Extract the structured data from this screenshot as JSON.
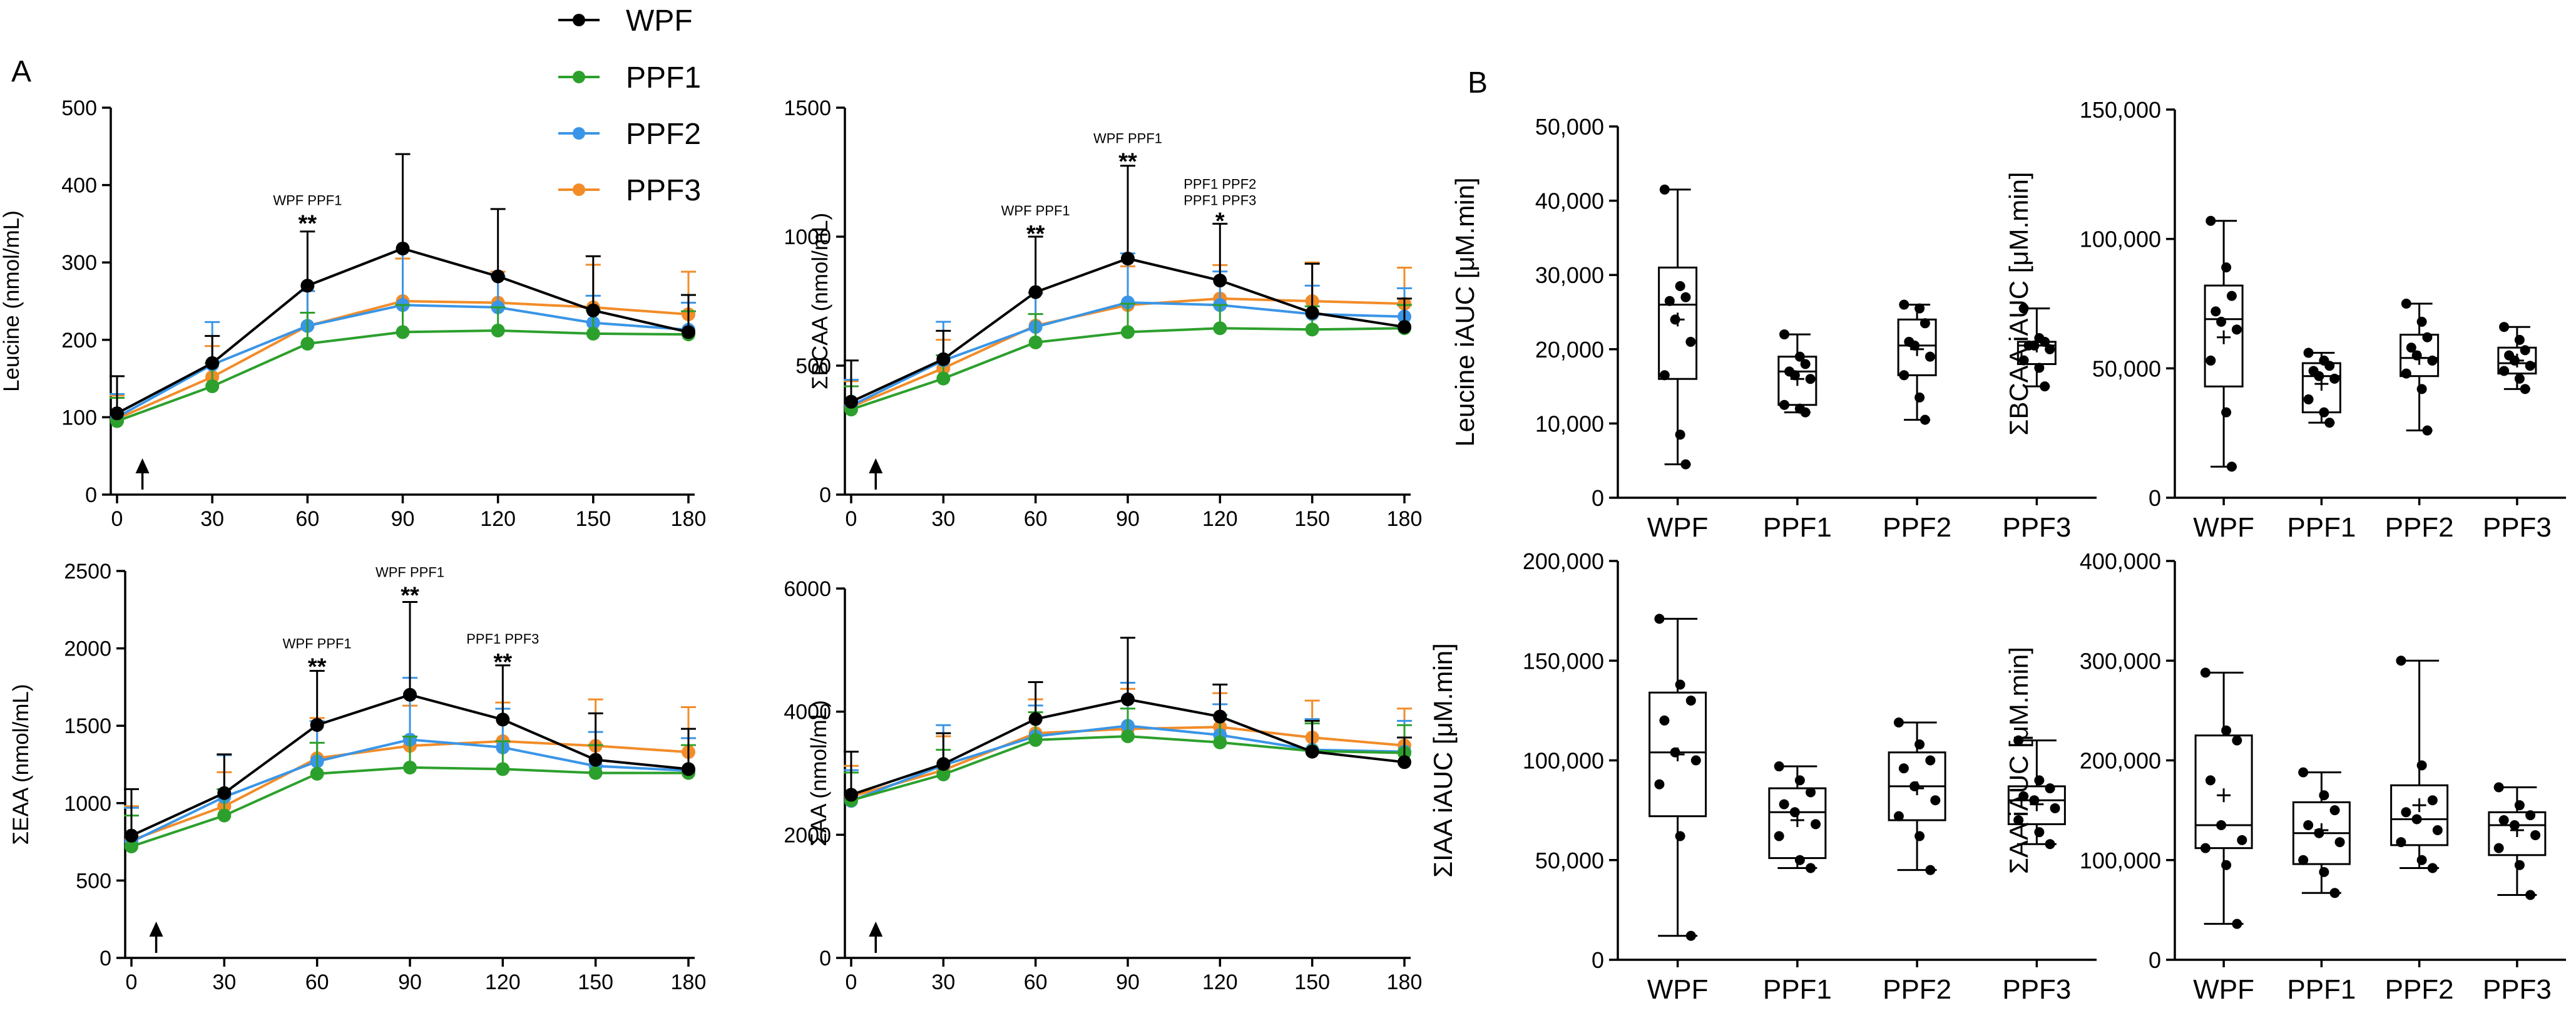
{
  "panel_labels": {
    "a": "A",
    "b": "B"
  },
  "legend": [
    {
      "name": "WPF",
      "color": "#000000"
    },
    {
      "name": "PPF1",
      "color": "#2ca02c"
    },
    {
      "name": "PPF2",
      "color": "#3a95e6"
    },
    {
      "name": "PPF3",
      "color": "#f28c28"
    }
  ],
  "chart_data": [
    {
      "type": "line",
      "id": "leucine",
      "ylabel": "Leucine (nmol/mL)",
      "x": [
        0,
        30,
        60,
        90,
        120,
        150,
        180
      ],
      "xticks": [
        "0",
        "30",
        "60",
        "90",
        "120",
        "150",
        "180"
      ],
      "ylim": [
        0,
        500
      ],
      "yticks": [
        "0",
        "100",
        "200",
        "300",
        "400",
        "500"
      ],
      "yticks_values": [
        0,
        100,
        200,
        300,
        400,
        500
      ],
      "arrow_x": 8,
      "series": [
        {
          "name": "WPF",
          "values": [
            105,
            170,
            270,
            318,
            282,
            238,
            210
          ],
          "err": [
            48,
            35,
            70,
            122,
            87,
            70,
            48
          ]
        },
        {
          "name": "PPF1",
          "values": [
            95,
            140,
            195,
            210,
            212,
            208,
            207
          ],
          "err": [
            30,
            30,
            40,
            35,
            30,
            30,
            30
          ]
        },
        {
          "name": "PPF2",
          "values": [
            100,
            168,
            218,
            245,
            242,
            222,
            213
          ],
          "err": [
            30,
            55,
            45,
            70,
            40,
            35,
            35
          ]
        },
        {
          "name": "PPF3",
          "values": [
            98,
            152,
            218,
            250,
            248,
            242,
            233
          ],
          "err": [
            30,
            40,
            45,
            55,
            40,
            55,
            55
          ]
        }
      ],
      "annotations": [
        {
          "x": 60,
          "level": 350,
          "text": "WPF PPF1",
          "stars": "**"
        }
      ]
    },
    {
      "type": "line",
      "id": "bcaa",
      "ylabel": "ΣBCAA (nmol/mL)",
      "x": [
        0,
        30,
        60,
        90,
        120,
        150,
        180
      ],
      "xticks": [
        "0",
        "30",
        "60",
        "90",
        "120",
        "150",
        "180"
      ],
      "ylim": [
        0,
        1500
      ],
      "yticks": [
        "0",
        "500",
        "1000",
        "1500"
      ],
      "yticks_values": [
        0,
        500,
        1000,
        1500
      ],
      "arrow_x": 8,
      "series": [
        {
          "name": "WPF",
          "values": [
            360,
            525,
            785,
            915,
            830,
            705,
            650
          ],
          "err": [
            160,
            110,
            215,
            360,
            220,
            190,
            110
          ]
        },
        {
          "name": "PPF1",
          "values": [
            330,
            450,
            590,
            630,
            645,
            640,
            645
          ],
          "err": [
            90,
            90,
            110,
            110,
            90,
            90,
            90
          ]
        },
        {
          "name": "PPF2",
          "values": [
            345,
            520,
            650,
            745,
            735,
            700,
            690
          ],
          "err": [
            100,
            150,
            130,
            190,
            130,
            110,
            110
          ]
        },
        {
          "name": "PPF3",
          "values": [
            340,
            490,
            655,
            735,
            760,
            750,
            740
          ],
          "err": [
            100,
            110,
            130,
            150,
            130,
            150,
            140
          ]
        }
      ],
      "annotations": [
        {
          "x": 60,
          "level": 1010,
          "text": "WPF PPF1",
          "stars": "**"
        },
        {
          "x": 90,
          "level": 1290,
          "text": "WPF PPF1",
          "stars": "**"
        },
        {
          "x": 120,
          "level": 1060,
          "text": "PPF1 PPF2",
          "text2": "PPF1 PPF3",
          "stars": "*"
        }
      ]
    },
    {
      "type": "line",
      "id": "eaa",
      "ylabel": "ΣEAA (nmol/mL)",
      "x": [
        0,
        30,
        60,
        90,
        120,
        150,
        180
      ],
      "xticks": [
        "0",
        "30",
        "60",
        "90",
        "120",
        "150",
        "180"
      ],
      "ylim": [
        0,
        2500
      ],
      "yticks": [
        "0",
        "500",
        "1000",
        "1500",
        "2000",
        "2500"
      ],
      "yticks_values": [
        0,
        500,
        1000,
        1500,
        2000,
        2500
      ],
      "arrow_x": 8,
      "series": [
        {
          "name": "WPF",
          "values": [
            790,
            1065,
            1505,
            1700,
            1540,
            1280,
            1220
          ],
          "err": [
            300,
            250,
            350,
            600,
            350,
            300,
            260
          ]
        },
        {
          "name": "PPF1",
          "values": [
            720,
            920,
            1190,
            1230,
            1220,
            1195,
            1195
          ],
          "err": [
            200,
            170,
            200,
            200,
            180,
            180,
            180
          ]
        },
        {
          "name": "PPF2",
          "values": [
            750,
            1040,
            1270,
            1410,
            1360,
            1240,
            1210
          ],
          "err": [
            220,
            270,
            260,
            400,
            250,
            220,
            210
          ]
        },
        {
          "name": "PPF3",
          "values": [
            760,
            980,
            1290,
            1370,
            1400,
            1370,
            1330
          ],
          "err": [
            220,
            220,
            260,
            260,
            250,
            300,
            290
          ]
        }
      ],
      "annotations": [
        {
          "x": 60,
          "level": 1880,
          "text": "WPF PPF1",
          "stars": "**"
        },
        {
          "x": 90,
          "level": 2340,
          "text": "WPF PPF1",
          "stars": "**"
        },
        {
          "x": 120,
          "level": 1910,
          "text": "PPF1 PPF3",
          "stars": "**"
        }
      ]
    },
    {
      "type": "line",
      "id": "aa",
      "ylabel": "ΣAA (nmol/mL)",
      "x": [
        0,
        30,
        60,
        90,
        120,
        150,
        180
      ],
      "xticks": [
        "0",
        "30",
        "60",
        "90",
        "120",
        "150",
        "180"
      ],
      "ylim": [
        0,
        6000
      ],
      "yticks": [
        "0",
        "2000",
        "4000",
        "6000"
      ],
      "yticks_values": [
        0,
        2000,
        4000,
        6000
      ],
      "arrow_x": 8,
      "series": [
        {
          "name": "WPF",
          "values": [
            2650,
            3150,
            3880,
            4200,
            3920,
            3350,
            3180
          ],
          "err": [
            700,
            500,
            600,
            1000,
            520,
            500,
            400
          ]
        },
        {
          "name": "PPF1",
          "values": [
            2560,
            2980,
            3540,
            3600,
            3500,
            3360,
            3330
          ],
          "err": [
            450,
            400,
            450,
            450,
            450,
            450,
            450
          ]
        },
        {
          "name": "PPF2",
          "values": [
            2550,
            3130,
            3600,
            3770,
            3620,
            3380,
            3350
          ],
          "err": [
            500,
            650,
            500,
            700,
            500,
            500,
            500
          ]
        },
        {
          "name": "PPF3",
          "values": [
            2620,
            3050,
            3650,
            3720,
            3750,
            3580,
            3450
          ],
          "err": [
            500,
            550,
            550,
            650,
            550,
            600,
            600
          ]
        }
      ],
      "annotations": []
    },
    {
      "type": "box",
      "id": "leucine_iauc",
      "ylabel": "Leucine iAUC [μM.min]",
      "categories": [
        "WPF",
        "PPF1",
        "PPF2",
        "PPF3"
      ],
      "ylim": [
        0,
        50000
      ],
      "yticks": [
        "0",
        "10,000",
        "20,000",
        "30,000",
        "40,000",
        "50,000"
      ],
      "yticks_values": [
        0,
        10000,
        20000,
        30000,
        40000,
        50000
      ],
      "boxes": [
        {
          "min": 4500,
          "q1": 16000,
          "median": 26000,
          "q3": 31000,
          "max": 41500,
          "mean": 24000,
          "points": [
            41500,
            28500,
            27000,
            26500,
            24000,
            21000,
            16500,
            8500,
            4500
          ]
        },
        {
          "min": 11500,
          "q1": 12500,
          "median": 17000,
          "q3": 19000,
          "max": 22000,
          "mean": 16000,
          "points": [
            22000,
            19000,
            18000,
            17000,
            16500,
            16000,
            12500,
            12000,
            11500
          ]
        },
        {
          "min": 10500,
          "q1": 16500,
          "median": 20500,
          "q3": 24000,
          "max": 26000,
          "mean": 20000,
          "points": [
            26000,
            25500,
            23500,
            21000,
            20500,
            19000,
            16500,
            13500,
            10500
          ]
        },
        {
          "min": 15000,
          "q1": 18000,
          "median": 20500,
          "q3": 21000,
          "max": 25500,
          "mean": 20500,
          "points": [
            25500,
            21500,
            21000,
            20500,
            20500,
            20000,
            18500,
            17500,
            15000
          ]
        }
      ]
    },
    {
      "type": "box",
      "id": "bcaa_iauc",
      "ylabel": "ΣBCAA iAUC [μM.min]",
      "categories": [
        "WPF",
        "PPF1",
        "PPF2",
        "PPF3"
      ],
      "ylim": [
        0,
        150000
      ],
      "yticks": [
        "0",
        "50,000",
        "100,000",
        "150,000"
      ],
      "yticks_values": [
        0,
        50000,
        100000,
        150000
      ],
      "boxes": [
        {
          "min": 12000,
          "q1": 43000,
          "median": 69000,
          "q3": 82000,
          "max": 107000,
          "mean": 62000,
          "points": [
            107000,
            89000,
            78000,
            72000,
            68000,
            65000,
            53000,
            33000,
            12000
          ]
        },
        {
          "min": 29000,
          "q1": 33000,
          "median": 47000,
          "q3": 52000,
          "max": 56000,
          "mean": 44000,
          "points": [
            56000,
            53000,
            51000,
            49000,
            47000,
            46000,
            38000,
            33000,
            29000
          ]
        },
        {
          "min": 26000,
          "q1": 47000,
          "median": 54000,
          "q3": 63000,
          "max": 75000,
          "mean": 54000,
          "points": [
            75000,
            68000,
            62000,
            58000,
            55000,
            53000,
            48000,
            42000,
            26000
          ]
        },
        {
          "min": 42000,
          "q1": 48000,
          "median": 52000,
          "q3": 58000,
          "max": 66000,
          "mean": 53000,
          "points": [
            66000,
            61000,
            57000,
            55000,
            53000,
            51000,
            49000,
            46000,
            42000
          ]
        }
      ]
    },
    {
      "type": "box",
      "id": "iaa_iauc",
      "ylabel": "ΣIAA iAUC [μM.min]",
      "categories": [
        "WPF",
        "PPF1",
        "PPF2",
        "PPF3"
      ],
      "ylim": [
        0,
        200000
      ],
      "yticks": [
        "0",
        "50,000",
        "100,000",
        "150,000",
        "200,000"
      ],
      "yticks_values": [
        0,
        50000,
        100000,
        150000,
        200000
      ],
      "boxes": [
        {
          "min": 12000,
          "q1": 72000,
          "median": 104000,
          "q3": 134000,
          "max": 171000,
          "mean": 103000,
          "points": [
            171000,
            138000,
            130000,
            120000,
            104000,
            100000,
            88000,
            62000,
            12000
          ]
        },
        {
          "min": 46000,
          "q1": 51000,
          "median": 74000,
          "q3": 86000,
          "max": 97000,
          "mean": 70000,
          "points": [
            97000,
            90000,
            84000,
            78000,
            74000,
            68000,
            62000,
            50000,
            46000
          ]
        },
        {
          "min": 45000,
          "q1": 70000,
          "median": 87000,
          "q3": 104000,
          "max": 119000,
          "mean": 86000,
          "points": [
            119000,
            108000,
            100000,
            96000,
            87000,
            80000,
            72000,
            62000,
            45000
          ]
        },
        {
          "min": 58000,
          "q1": 68000,
          "median": 80000,
          "q3": 87000,
          "max": 110000,
          "mean": 78000,
          "points": [
            110000,
            90000,
            86000,
            82000,
            80000,
            76000,
            70000,
            64000,
            58000
          ]
        }
      ]
    },
    {
      "type": "box",
      "id": "aa_iauc",
      "ylabel": "ΣAA iAUC [μM.min]",
      "categories": [
        "WPF",
        "PPF1",
        "PPF2",
        "PPF3"
      ],
      "ylim": [
        0,
        400000
      ],
      "yticks": [
        "0",
        "100,000",
        "200,000",
        "300,000",
        "400,000"
      ],
      "yticks_values": [
        0,
        100000,
        200000,
        300000,
        400000
      ],
      "boxes": [
        {
          "min": 36000,
          "q1": 112000,
          "median": 135000,
          "q3": 225000,
          "max": 288000,
          "mean": 165000,
          "points": [
            288000,
            230000,
            220000,
            180000,
            135000,
            120000,
            112000,
            95000,
            36000
          ]
        },
        {
          "min": 67000,
          "q1": 96000,
          "median": 127000,
          "q3": 158000,
          "max": 188000,
          "mean": 130000,
          "points": [
            188000,
            165000,
            150000,
            135000,
            127000,
            118000,
            100000,
            88000,
            67000
          ]
        },
        {
          "min": 92000,
          "q1": 115000,
          "median": 141000,
          "q3": 175000,
          "max": 300000,
          "mean": 155000,
          "points": [
            300000,
            195000,
            160000,
            148000,
            141000,
            130000,
            118000,
            100000,
            92000
          ]
        },
        {
          "min": 65000,
          "q1": 105000,
          "median": 135000,
          "q3": 148000,
          "max": 173000,
          "mean": 130000,
          "points": [
            173000,
            155000,
            145000,
            140000,
            135000,
            125000,
            112000,
            95000,
            65000
          ]
        }
      ]
    }
  ]
}
